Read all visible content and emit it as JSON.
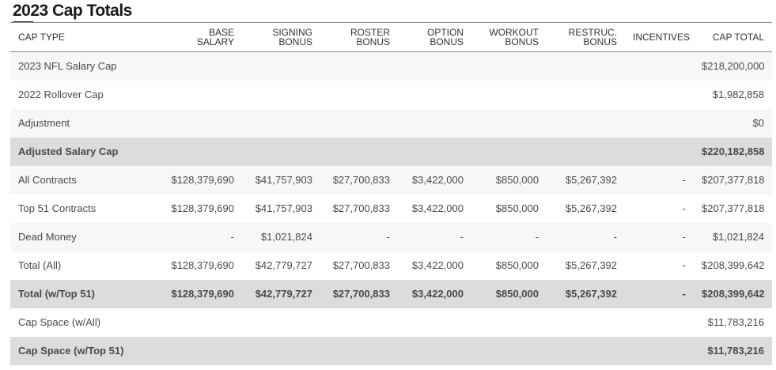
{
  "section": {
    "title": "2023 Cap Totals"
  },
  "table": {
    "headers": [
      {
        "line1": "CAP TYPE",
        "line2": ""
      },
      {
        "line1": "BASE SALARY",
        "line2": ""
      },
      {
        "line1": "SIGNING",
        "line2": "BONUS"
      },
      {
        "line1": "ROSTER",
        "line2": "BONUS"
      },
      {
        "line1": "OPTION",
        "line2": "BONUS"
      },
      {
        "line1": "WORKOUT",
        "line2": "BONUS"
      },
      {
        "line1": "RESTRUC.",
        "line2": "BONUS"
      },
      {
        "line1": "INCENTIVES",
        "line2": ""
      },
      {
        "line1": "CAP TOTAL",
        "line2": ""
      }
    ],
    "rows": [
      {
        "style": "odd",
        "cells": [
          "2023 NFL Salary Cap",
          "",
          "",
          "",
          "",
          "",
          "",
          "",
          "$218,200,000"
        ]
      },
      {
        "style": "even",
        "cells": [
          "2022 Rollover Cap",
          "",
          "",
          "",
          "",
          "",
          "",
          "",
          "$1,982,858"
        ]
      },
      {
        "style": "odd",
        "cells": [
          "Adjustment",
          "",
          "",
          "",
          "",
          "",
          "",
          "",
          "$0"
        ]
      },
      {
        "style": "bold",
        "cells": [
          "Adjusted Salary Cap",
          "",
          "",
          "",
          "",
          "",
          "",
          "",
          "$220,182,858"
        ]
      },
      {
        "style": "odd",
        "cells": [
          "All Contracts",
          "$128,379,690",
          "$41,757,903",
          "$27,700,833",
          "$3,422,000",
          "$850,000",
          "$5,267,392",
          "-",
          "$207,377,818"
        ]
      },
      {
        "style": "even",
        "cells": [
          "Top 51 Contracts",
          "$128,379,690",
          "$41,757,903",
          "$27,700,833",
          "$3,422,000",
          "$850,000",
          "$5,267,392",
          "-",
          "$207,377,818"
        ]
      },
      {
        "style": "odd",
        "cells": [
          "Dead Money",
          "-",
          "$1,021,824",
          "-",
          "-",
          "-",
          "-",
          "-",
          "$1,021,824"
        ]
      },
      {
        "style": "even",
        "cells": [
          "Total (All)",
          "$128,379,690",
          "$42,779,727",
          "$27,700,833",
          "$3,422,000",
          "$850,000",
          "$5,267,392",
          "-",
          "$208,399,642"
        ]
      },
      {
        "style": "bold",
        "cells": [
          "Total (w/Top 51)",
          "$128,379,690",
          "$42,779,727",
          "$27,700,833",
          "$3,422,000",
          "$850,000",
          "$5,267,392",
          "-",
          "$208,399,642"
        ]
      },
      {
        "style": "even",
        "cells": [
          "Cap Space (w/All)",
          "",
          "",
          "",
          "",
          "",
          "",
          "",
          "$11,783,216"
        ]
      },
      {
        "style": "bold",
        "cells": [
          "Cap Space (w/Top 51)",
          "",
          "",
          "",
          "",
          "",
          "",
          "",
          "$11,783,216"
        ]
      }
    ]
  }
}
